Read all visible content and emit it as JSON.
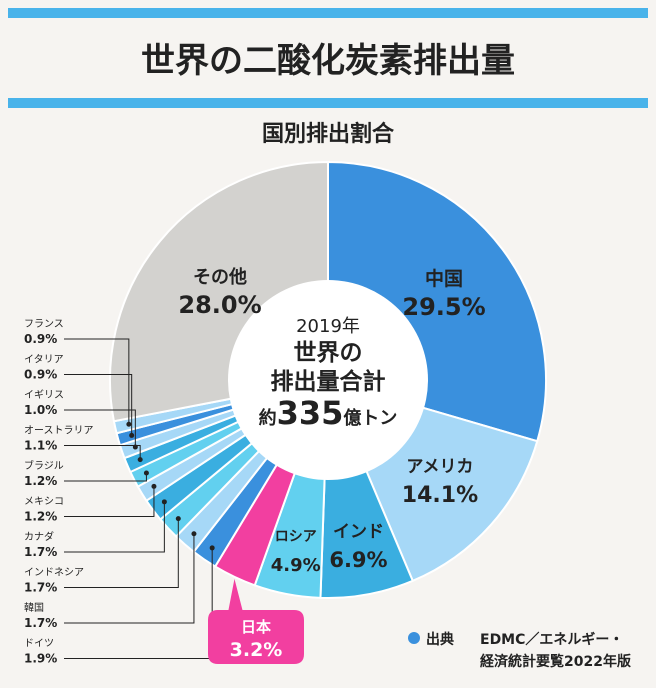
{
  "title": "世界の二酸化炭素排出量",
  "subtitle": "国別排出割合",
  "center": {
    "line1": "2019年",
    "line2": "世界の",
    "line3": "排出量合計",
    "prefix": "約",
    "number": "335",
    "suffix": "億トン"
  },
  "source": {
    "label": "出典",
    "line1": "EDMC／エネルギー・",
    "line2": "経済統計要覧2022年版"
  },
  "colors": {
    "china": "#3a90dd",
    "blue_light": "#a6d8f7",
    "blue_mid": "#3aaee0",
    "cyan": "#62d0ef",
    "japan": "#f23fa0",
    "other": "#d3d2cf",
    "bar": "#49b3ea"
  },
  "chart_data": {
    "type": "pie",
    "donut": true,
    "slices": [
      {
        "name": "中国",
        "value": 29.5,
        "label": "29.5%"
      },
      {
        "name": "アメリカ",
        "value": 14.1,
        "label": "14.1%"
      },
      {
        "name": "インド",
        "value": 6.9,
        "label": "6.9%"
      },
      {
        "name": "ロシア",
        "value": 4.9,
        "label": "4.9%"
      },
      {
        "name": "日本",
        "value": 3.2,
        "label": "3.2%"
      },
      {
        "name": "ドイツ",
        "value": 1.9,
        "label": "1.9%"
      },
      {
        "name": "韓国",
        "value": 1.7,
        "label": "1.7%"
      },
      {
        "name": "インドネシア",
        "value": 1.7,
        "label": "1.7%"
      },
      {
        "name": "カナダ",
        "value": 1.7,
        "label": "1.7%"
      },
      {
        "name": "メキシコ",
        "value": 1.2,
        "label": "1.2%"
      },
      {
        "name": "ブラジル",
        "value": 1.2,
        "label": "1.2%"
      },
      {
        "name": "オーストラリア",
        "value": 1.1,
        "label": "1.1%"
      },
      {
        "name": "イギリス",
        "value": 1.0,
        "label": "1.0%"
      },
      {
        "name": "イタリア",
        "value": 0.9,
        "label": "0.9%"
      },
      {
        "name": "フランス",
        "value": 0.9,
        "label": "0.9%"
      },
      {
        "name": "その他",
        "value": 28.0,
        "label": "28.0%"
      }
    ]
  }
}
